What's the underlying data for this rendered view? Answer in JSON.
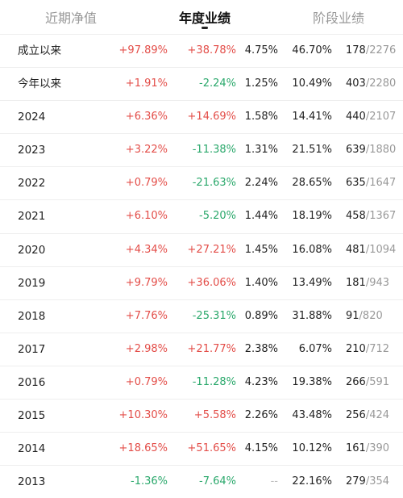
{
  "tabs": [
    {
      "label": "近期净值"
    },
    {
      "label": "年度业绩"
    },
    {
      "label": "阶段业绩"
    }
  ],
  "rows": [
    {
      "label": "成立以来",
      "ret": "+97.89%",
      "ret_sign": "pos",
      "avg": "+38.78%",
      "avg_sign": "pos",
      "hs300": "4.75%",
      "pct": "46.70%",
      "rank": "178",
      "total": "/2276"
    },
    {
      "label": "今年以来",
      "ret": "+1.91%",
      "ret_sign": "pos",
      "avg": "-2.24%",
      "avg_sign": "neg",
      "hs300": "1.25%",
      "pct": "10.49%",
      "rank": "403",
      "total": "/2280"
    },
    {
      "label": "2024",
      "ret": "+6.36%",
      "ret_sign": "pos",
      "avg": "+14.69%",
      "avg_sign": "pos",
      "hs300": "1.58%",
      "pct": "14.41%",
      "rank": "440",
      "total": "/2107"
    },
    {
      "label": "2023",
      "ret": "+3.22%",
      "ret_sign": "pos",
      "avg": "-11.38%",
      "avg_sign": "neg",
      "hs300": "1.31%",
      "pct": "21.51%",
      "rank": "639",
      "total": "/1880"
    },
    {
      "label": "2022",
      "ret": "+0.79%",
      "ret_sign": "pos",
      "avg": "-21.63%",
      "avg_sign": "neg",
      "hs300": "2.24%",
      "pct": "28.65%",
      "rank": "635",
      "total": "/1647"
    },
    {
      "label": "2021",
      "ret": "+6.10%",
      "ret_sign": "pos",
      "avg": "-5.20%",
      "avg_sign": "neg",
      "hs300": "1.44%",
      "pct": "18.19%",
      "rank": "458",
      "total": "/1367"
    },
    {
      "label": "2020",
      "ret": "+4.34%",
      "ret_sign": "pos",
      "avg": "+27.21%",
      "avg_sign": "pos",
      "hs300": "1.45%",
      "pct": "16.08%",
      "rank": "481",
      "total": "/1094"
    },
    {
      "label": "2019",
      "ret": "+9.79%",
      "ret_sign": "pos",
      "avg": "+36.06%",
      "avg_sign": "pos",
      "hs300": "1.40%",
      "pct": "13.49%",
      "rank": "181",
      "total": "/943"
    },
    {
      "label": "2018",
      "ret": "+7.76%",
      "ret_sign": "pos",
      "avg": "-25.31%",
      "avg_sign": "neg",
      "hs300": "0.89%",
      "pct": "31.88%",
      "rank": "91",
      "total": "/820"
    },
    {
      "label": "2017",
      "ret": "+2.98%",
      "ret_sign": "pos",
      "avg": "+21.77%",
      "avg_sign": "pos",
      "hs300": "2.38%",
      "pct": "6.07%",
      "rank": "210",
      "total": "/712"
    },
    {
      "label": "2016",
      "ret": "+0.79%",
      "ret_sign": "pos",
      "avg": "-11.28%",
      "avg_sign": "neg",
      "hs300": "4.23%",
      "pct": "19.38%",
      "rank": "266",
      "total": "/591"
    },
    {
      "label": "2015",
      "ret": "+10.30%",
      "ret_sign": "pos",
      "avg": "+5.58%",
      "avg_sign": "pos",
      "hs300": "2.26%",
      "pct": "43.48%",
      "rank": "256",
      "total": "/424"
    },
    {
      "label": "2014",
      "ret": "+18.65%",
      "ret_sign": "pos",
      "avg": "+51.65%",
      "avg_sign": "pos",
      "hs300": "4.15%",
      "pct": "10.12%",
      "rank": "161",
      "total": "/390"
    },
    {
      "label": "2013",
      "ret": "-1.36%",
      "ret_sign": "neg",
      "avg": "-7.64%",
      "avg_sign": "neg",
      "hs300": "--",
      "pct": "22.16%",
      "rank": "279",
      "total": "/354"
    }
  ],
  "colors": {
    "positive": "#e34d48",
    "negative": "#2aa86b",
    "muted": "#999999"
  }
}
